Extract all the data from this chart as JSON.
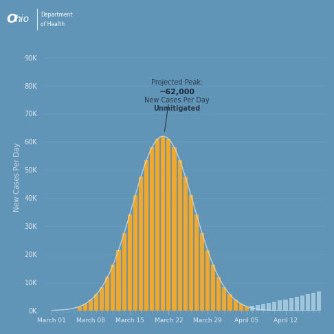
{
  "background_color": "#6195b8",
  "bar_color_orange": "#f5a623",
  "bar_color_light_blue": "#a8cce0",
  "curve_color": "#c8dde8",
  "ylabel": "New Cases Per Day",
  "yticks": [
    0,
    10000,
    20000,
    30000,
    40000,
    50000,
    60000,
    70000,
    80000,
    90000
  ],
  "ytick_labels": [
    "0K",
    "10K",
    "20K",
    "30K",
    "40K",
    "50K",
    "60K",
    "70K",
    "80K",
    "90K"
  ],
  "xtick_labels": [
    "March 01",
    "March 08",
    "March 15",
    "March 22",
    "March 29",
    "April 05",
    "April 12"
  ],
  "annotation_line1": "Projected Peak:",
  "annotation_line2": "~62,000",
  "annotation_line3": "New Cases Per Day",
  "annotation_line4": "Unmitigated",
  "peak_value": 62000,
  "ohio_box_color": "#1e5a8a",
  "peak_day_orange": 20,
  "sigma_orange": 5.5,
  "n_days": 49,
  "orange_start": 5,
  "orange_end": 35,
  "blue_start": 33,
  "peak_day_blue": 56,
  "sigma_blue": 11,
  "blue_peak_val": 9000,
  "xtick_positions": [
    0,
    7,
    14,
    21,
    28,
    35,
    42
  ]
}
